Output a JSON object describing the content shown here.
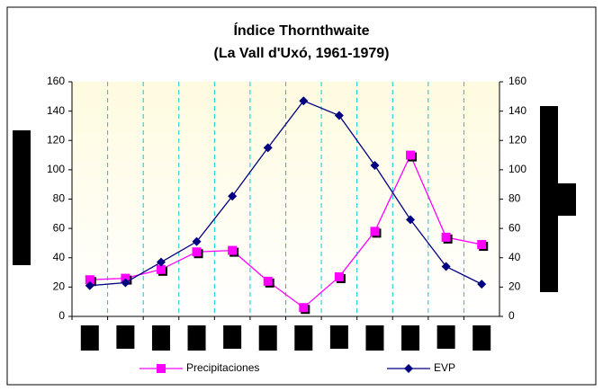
{
  "chart_data": {
    "type": "line",
    "title": "Índice Thornthwaite",
    "subtitle": "(La Vall d'Uxó, 1961-1979)",
    "categories": [
      null,
      null,
      null,
      null,
      null,
      null,
      null,
      null,
      null,
      null,
      null,
      null
    ],
    "series": [
      {
        "name": "Precipitaciones",
        "color": "#ff00ff",
        "marker": "square",
        "values": [
          25,
          26,
          32,
          44,
          45,
          24,
          6,
          27,
          58,
          110,
          54,
          49
        ]
      },
      {
        "name": "EVP",
        "color": "#000080",
        "marker": "diamond",
        "values": [
          21,
          23,
          37,
          51,
          82,
          115,
          147,
          137,
          103,
          66,
          34,
          22
        ]
      }
    ],
    "ylim": [
      0,
      160
    ],
    "yticks": [
      0,
      20,
      40,
      60,
      80,
      100,
      120,
      140,
      160
    ],
    "y2lim": [
      0,
      160
    ],
    "y2ticks": [
      0,
      20,
      40,
      60,
      80,
      100,
      120,
      140,
      160
    ],
    "grid": true,
    "legend": "bottom"
  }
}
